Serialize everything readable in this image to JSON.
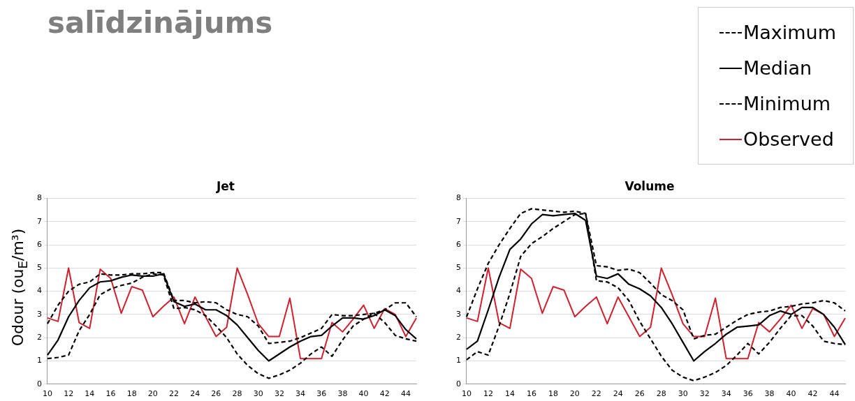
{
  "chart_data": [
    {
      "type": "line",
      "title": "Jet",
      "ylabel": "Odour (ou$_{E}$/m³)",
      "annotations": [
        "salīdzinājums"
      ],
      "legend": "top right",
      "grid": "y",
      "ylim": [
        0,
        8
      ],
      "yticks": [
        0,
        1,
        2,
        3,
        4,
        5,
        6,
        7,
        8
      ],
      "marker": "none",
      "categories": [
        "10",
        null,
        "12",
        null,
        "14",
        null,
        "16",
        null,
        "18",
        null,
        "20",
        null,
        "22",
        null,
        "24",
        null,
        "26",
        null,
        "28",
        null,
        "30",
        null,
        "32",
        null,
        "34",
        null,
        "36",
        null,
        "38",
        null,
        "40",
        null,
        "42",
        null,
        "44",
        null
      ],
      "series": [
        {
          "name": "Maximum",
          "color": "#000000",
          "line_style": "dashed",
          "values": [
            2.6,
            3.4,
            4.0,
            4.3,
            4.4,
            4.75,
            4.7,
            4.7,
            4.75,
            4.75,
            4.8,
            4.8,
            3.6,
            3.6,
            3.5,
            3.55,
            3.5,
            3.2,
            3.0,
            2.9,
            2.5,
            1.75,
            1.8,
            1.85,
            2.0,
            2.2,
            2.4,
            3.0,
            2.95,
            2.95,
            3.0,
            3.05,
            3.2,
            3.5,
            3.5,
            2.9
          ]
        },
        {
          "name": "Median",
          "color": "#000000",
          "line_style": "solid",
          "values": [
            1.25,
            1.9,
            2.9,
            3.6,
            4.15,
            4.4,
            4.45,
            4.6,
            4.7,
            4.65,
            4.65,
            4.75,
            3.55,
            3.35,
            3.45,
            3.2,
            3.2,
            2.95,
            2.55,
            2.0,
            1.45,
            1.0,
            1.3,
            1.6,
            1.85,
            2.05,
            2.1,
            2.5,
            2.85,
            2.85,
            2.8,
            2.95,
            3.2,
            2.95,
            2.35,
            1.95
          ]
        },
        {
          "name": "Minimum",
          "color": "#000000",
          "line_style": "dashed",
          "values": [
            1.1,
            1.15,
            1.25,
            2.3,
            3.0,
            3.85,
            4.1,
            4.25,
            4.35,
            4.6,
            4.75,
            4.7,
            3.25,
            3.3,
            3.2,
            2.95,
            2.5,
            2.0,
            1.3,
            0.8,
            0.45,
            0.25,
            0.4,
            0.6,
            0.9,
            1.3,
            1.6,
            1.2,
            1.9,
            2.5,
            2.8,
            3.05,
            2.65,
            2.1,
            1.95,
            1.85
          ]
        },
        {
          "name": "Observed",
          "color": "#d0202e",
          "line_style": "solid",
          "values": [
            2.85,
            2.7,
            5.0,
            2.65,
            2.4,
            4.95,
            4.55,
            3.05,
            4.2,
            4.05,
            2.9,
            3.35,
            3.75,
            2.6,
            3.75,
            2.9,
            2.05,
            2.45,
            5.0,
            3.85,
            2.6,
            2.05,
            2.05,
            3.7,
            1.1,
            1.1,
            1.1,
            2.65,
            2.25,
            2.8,
            3.4,
            2.4,
            3.25,
            3.0,
            2.05,
            2.85
          ]
        }
      ]
    },
    {
      "type": "line",
      "title": "Volume",
      "grid": "y",
      "ylim": [
        0,
        8
      ],
      "yticks": [
        0,
        1,
        2,
        3,
        4,
        5,
        6,
        7,
        8
      ],
      "marker": "none",
      "categories": [
        "10",
        null,
        "12",
        null,
        "14",
        null,
        "16",
        null,
        "18",
        null,
        "20",
        null,
        "22",
        null,
        "24",
        null,
        "26",
        null,
        "28",
        null,
        "30",
        null,
        "32",
        null,
        "34",
        null,
        "36",
        null,
        "38",
        null,
        "40",
        null,
        "42",
        null,
        "44",
        null
      ],
      "series": [
        {
          "color": "#000000",
          "line_style": "dashed",
          "values": [
            2.9,
            4.1,
            5.2,
            6.0,
            6.7,
            7.35,
            7.55,
            7.5,
            7.45,
            7.4,
            7.45,
            7.35,
            5.1,
            5.05,
            4.9,
            4.95,
            4.8,
            4.35,
            3.85,
            3.6,
            3.2,
            1.95,
            2.1,
            2.15,
            2.45,
            2.75,
            3.0,
            3.1,
            3.15,
            3.3,
            3.35,
            3.45,
            3.5,
            3.6,
            3.5,
            3.15
          ]
        },
        {
          "color": "#000000",
          "line_style": "solid",
          "values": [
            1.5,
            1.85,
            3.2,
            4.6,
            5.8,
            6.25,
            6.9,
            7.3,
            7.25,
            7.3,
            7.35,
            7.05,
            4.65,
            4.55,
            4.75,
            4.3,
            4.1,
            3.8,
            3.3,
            2.6,
            1.8,
            1.0,
            1.4,
            1.75,
            2.15,
            2.45,
            2.5,
            2.55,
            2.95,
            3.15,
            3.0,
            3.3,
            3.3,
            3.0,
            2.45,
            1.7
          ]
        },
        {
          "color": "#000000",
          "line_style": "dashed",
          "values": [
            1.05,
            1.4,
            1.25,
            2.5,
            3.9,
            5.5,
            6.05,
            6.35,
            6.7,
            7.0,
            7.3,
            7.35,
            4.45,
            4.4,
            4.15,
            3.6,
            2.7,
            1.95,
            1.2,
            0.6,
            0.3,
            0.15,
            0.3,
            0.5,
            0.8,
            1.25,
            1.75,
            1.3,
            1.8,
            2.4,
            2.95,
            2.95,
            2.5,
            1.85,
            1.75,
            1.7
          ]
        },
        {
          "color": "#d0202e",
          "line_style": "solid",
          "values": [
            2.85,
            2.7,
            5.0,
            2.65,
            2.4,
            4.95,
            4.55,
            3.05,
            4.2,
            4.05,
            2.9,
            3.35,
            3.75,
            2.6,
            3.75,
            2.9,
            2.05,
            2.45,
            5.0,
            3.85,
            2.6,
            2.05,
            2.05,
            3.7,
            1.1,
            1.1,
            1.1,
            2.65,
            2.25,
            2.8,
            3.4,
            2.4,
            3.25,
            3.0,
            2.05,
            2.85
          ]
        }
      ]
    }
  ]
}
